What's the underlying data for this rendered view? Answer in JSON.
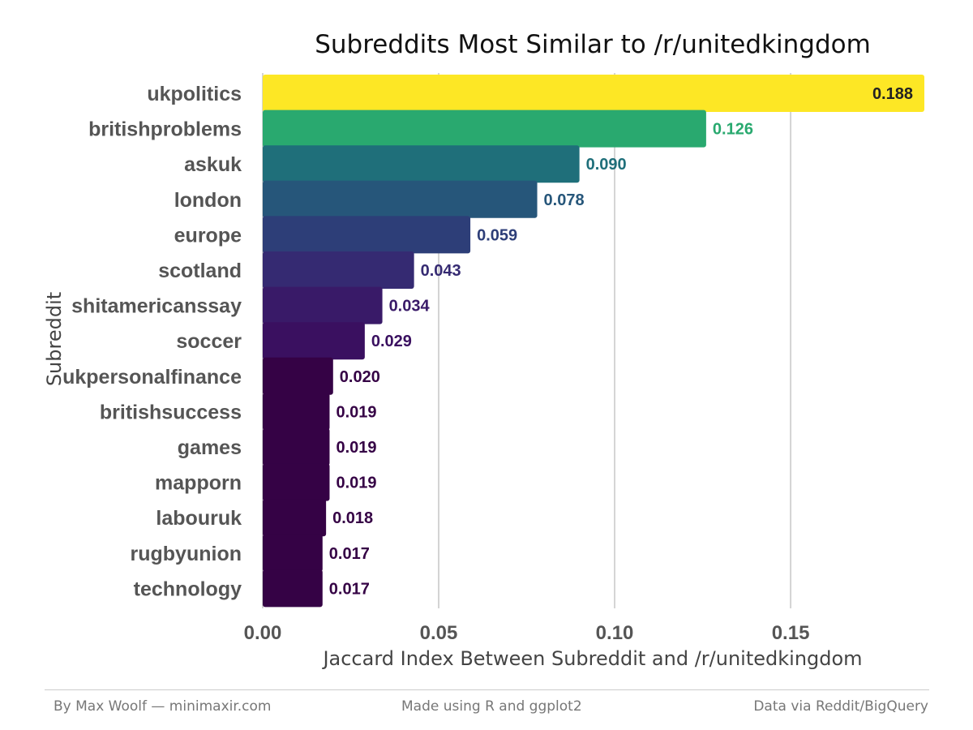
{
  "chart_data": {
    "type": "bar",
    "orientation": "horizontal",
    "title": "Subreddits Most Similar to /r/unitedkingdom",
    "xlabel": "Jaccard Index Between Subreddit and /r/unitedkingdom",
    "ylabel": "Subreddit",
    "xlim": [
      0,
      0.188
    ],
    "x_ticks": [
      0,
      0.05,
      0.1,
      0.15
    ],
    "x_tick_labels": [
      "0.00",
      "0.05",
      "0.10",
      "0.15"
    ],
    "grid": "vertical major gridlines",
    "color_scale": "viridis",
    "categories": [
      "ukpolitics",
      "britishproblems",
      "askuk",
      "london",
      "europe",
      "scotland",
      "shitamericanssay",
      "soccer",
      "ukpersonalfinance",
      "britishsuccess",
      "games",
      "mapporn",
      "labouruk",
      "rugbyunion",
      "technology"
    ],
    "values": [
      0.188,
      0.126,
      0.09,
      0.078,
      0.059,
      0.043,
      0.034,
      0.029,
      0.02,
      0.019,
      0.019,
      0.019,
      0.018,
      0.017,
      0.017
    ],
    "value_labels": [
      "0.188",
      "0.126",
      "0.090",
      "0.078",
      "0.059",
      "0.043",
      "0.034",
      "0.029",
      "0.020",
      "0.019",
      "0.019",
      "0.019",
      "0.018",
      "0.017",
      "0.017"
    ],
    "colors": [
      "#fde725",
      "#29a96f",
      "#1f6f7a",
      "#26567a",
      "#2d3e78",
      "#352a72",
      "#391a68",
      "#3a1060",
      "#350245",
      "#350245",
      "#350245",
      "#350245",
      "#350245",
      "#350245",
      "#350245"
    ]
  },
  "footer": {
    "left": "By Max Woolf — minimaxir.com",
    "center": "Made using R and ggplot2",
    "right": "Data via Reddit/BigQuery"
  }
}
